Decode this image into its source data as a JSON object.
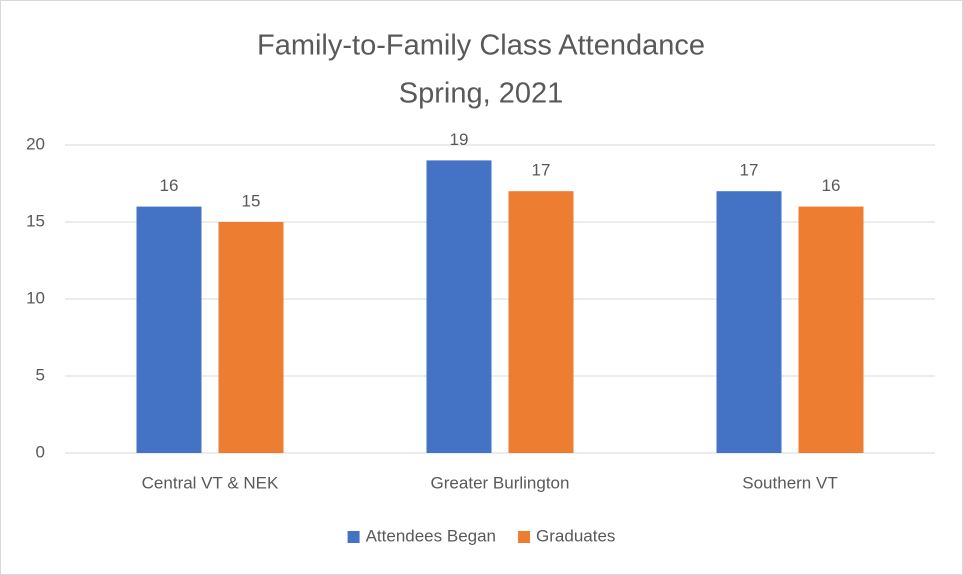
{
  "chart_data": {
    "type": "bar",
    "title": "Family-to-Family Class Attendance",
    "subtitle": "Spring, 2021",
    "categories": [
      "Central VT & NEK",
      "Greater Burlington",
      "Southern VT"
    ],
    "series": [
      {
        "name": "Attendees Began",
        "color": "#4472c4",
        "values": [
          16,
          19,
          17
        ]
      },
      {
        "name": "Graduates",
        "color": "#ed7d31",
        "values": [
          15,
          17,
          16
        ]
      }
    ],
    "ylim": [
      0,
      20
    ],
    "yticks": [
      0,
      5,
      10,
      15,
      20
    ],
    "grid": true,
    "legend": "bottom"
  }
}
